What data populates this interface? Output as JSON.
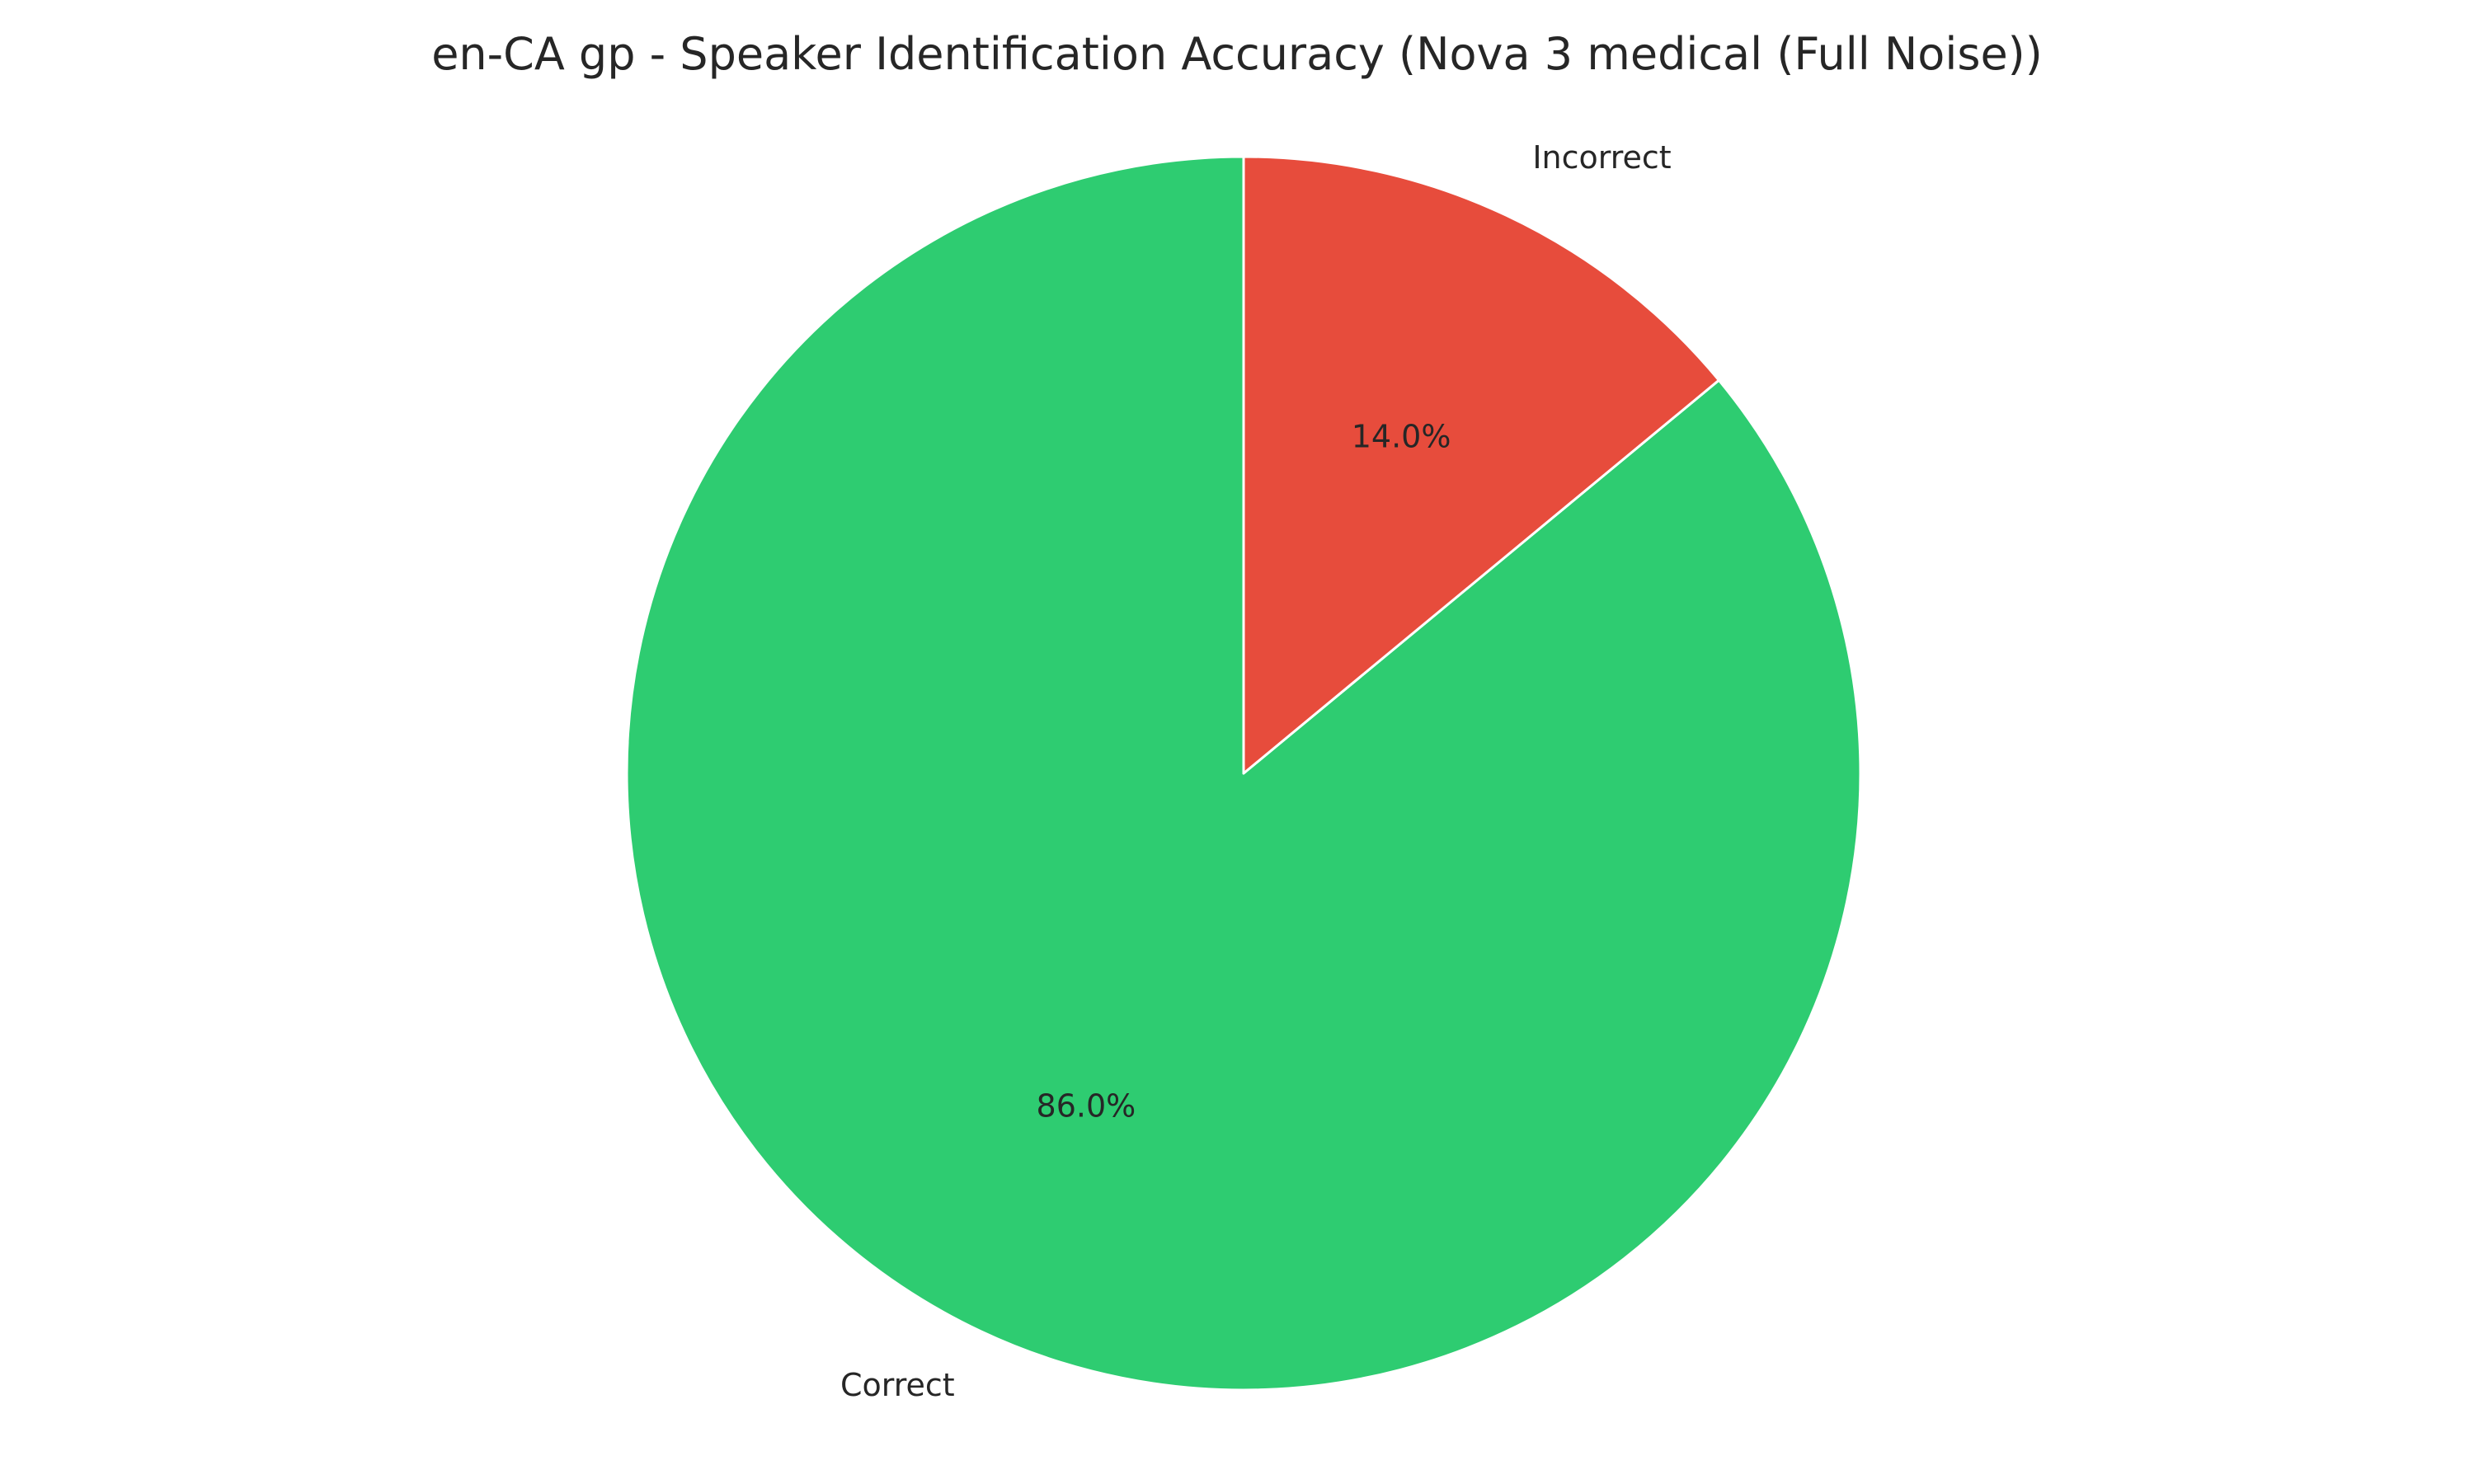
{
  "chart_data": {
    "type": "pie",
    "title": "en-CA gp - Speaker Identification Accuracy (Nova 3 medical (Full Noise))",
    "start_angle_deg": 90,
    "direction": "counterclockwise",
    "slices": [
      {
        "label": "Correct",
        "value": 86.0,
        "pct_label": "86.0%",
        "color": "#2ecc71"
      },
      {
        "label": "Incorrect",
        "value": 14.0,
        "pct_label": "14.0%",
        "color": "#e74c3c"
      }
    ]
  }
}
